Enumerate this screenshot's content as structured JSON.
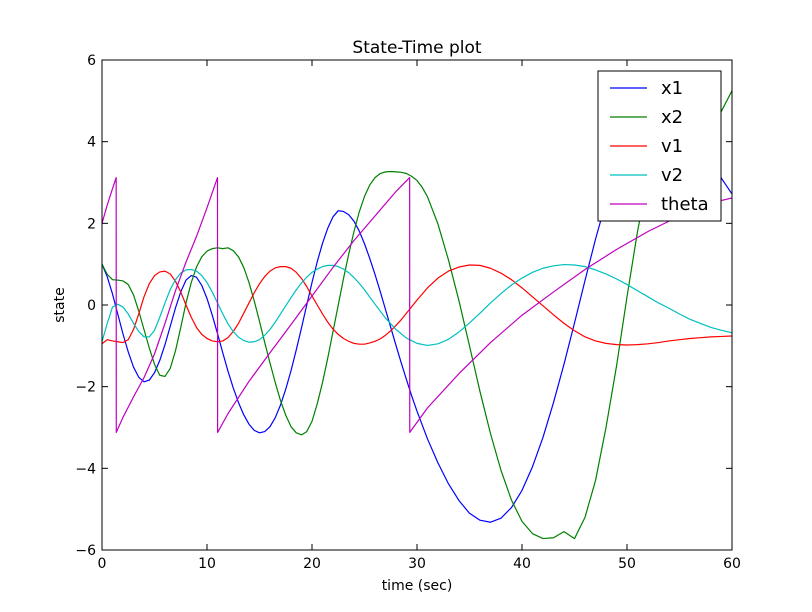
{
  "chart_data": {
    "type": "line",
    "title": "State-Time plot",
    "xlabel": "time (sec)",
    "ylabel": "state",
    "xlim": [
      0,
      60
    ],
    "ylim": [
      -6,
      6
    ],
    "xticks": [
      "0",
      "10",
      "20",
      "30",
      "40",
      "50",
      "60"
    ],
    "yticks": [
      "−6",
      "−4",
      "−2",
      "0",
      "2",
      "4",
      "6"
    ],
    "grid": false,
    "legend": "top-right",
    "series": [
      {
        "name": "x1",
        "color": "#0000ff",
        "x": [
          0,
          0.5,
          1,
          1.5,
          2,
          2.5,
          3,
          3.5,
          4,
          4.5,
          5,
          5.5,
          6,
          6.5,
          7,
          7.5,
          8,
          8.5,
          9,
          9.5,
          10,
          10.5,
          11,
          11.5,
          12,
          12.5,
          13,
          13.5,
          14,
          14.5,
          15,
          15.5,
          16,
          16.5,
          17,
          17.5,
          18,
          18.5,
          19,
          19.5,
          20,
          20.5,
          21,
          21.5,
          22,
          22.5,
          23,
          23.5,
          24,
          24.5,
          25,
          25.5,
          26,
          26.5,
          27,
          27.5,
          28,
          28.5,
          29,
          29.5,
          30,
          31,
          32,
          33,
          34,
          35,
          36,
          37,
          38,
          39,
          40,
          41,
          42,
          43,
          44,
          45,
          46,
          47,
          48,
          49,
          50,
          51,
          52,
          53,
          54,
          55,
          56,
          57,
          58,
          59,
          60
        ],
        "y": [
          1.0,
          0.69,
          0.27,
          -0.22,
          -0.71,
          -1.15,
          -1.52,
          -1.77,
          -1.88,
          -1.84,
          -1.66,
          -1.36,
          -0.97,
          -0.52,
          -0.07,
          0.32,
          0.61,
          0.72,
          0.68,
          0.48,
          0.16,
          -0.25,
          -0.7,
          -1.17,
          -1.62,
          -2.03,
          -2.39,
          -2.69,
          -2.92,
          -3.07,
          -3.13,
          -3.1,
          -2.98,
          -2.76,
          -2.45,
          -2.06,
          -1.61,
          -1.1,
          -0.56,
          0.0,
          0.55,
          1.06,
          1.51,
          1.88,
          2.16,
          2.31,
          2.29,
          2.21,
          2.05,
          1.81,
          1.5,
          1.14,
          0.75,
          0.33,
          -0.11,
          -0.55,
          -0.99,
          -1.42,
          -1.83,
          -2.23,
          -2.6,
          -3.28,
          -3.87,
          -4.38,
          -4.79,
          -5.1,
          -5.27,
          -5.32,
          -5.22,
          -4.96,
          -4.54,
          -3.96,
          -3.24,
          -2.39,
          -1.45,
          -0.44,
          0.6,
          1.61,
          2.53,
          3.32,
          3.93,
          4.36,
          4.62,
          4.73,
          4.72,
          4.58,
          4.34,
          4.0,
          3.58,
          3.1,
          2.72
        ]
      },
      {
        "name": "x2",
        "color": "#008000",
        "x": [
          0,
          0.5,
          1,
          1.5,
          2,
          2.5,
          3,
          3.5,
          4,
          4.5,
          5,
          5.5,
          6,
          6.5,
          7,
          7.5,
          8,
          8.5,
          9,
          9.5,
          10,
          10.5,
          11,
          11.5,
          12,
          12.5,
          13,
          13.5,
          14,
          14.5,
          15,
          15.5,
          16,
          16.5,
          17,
          17.5,
          18,
          18.5,
          19,
          19.5,
          20,
          20.5,
          21,
          21.5,
          22,
          22.5,
          23,
          23.5,
          24,
          24.5,
          25,
          25.5,
          26,
          26.5,
          27,
          27.5,
          28,
          28.5,
          29,
          29.5,
          30,
          30.5,
          31,
          32,
          33,
          34,
          35,
          36,
          37,
          38,
          39,
          40,
          41,
          42,
          43,
          44,
          45,
          46,
          47,
          48,
          49,
          50,
          51,
          52,
          53,
          54,
          55,
          56,
          57,
          58,
          59,
          60
        ],
        "y": [
          1.0,
          0.75,
          0.62,
          0.61,
          0.59,
          0.5,
          0.25,
          -0.15,
          -0.6,
          -1.05,
          -1.45,
          -1.72,
          -1.75,
          -1.55,
          -1.12,
          -0.55,
          0.05,
          0.55,
          0.93,
          1.18,
          1.32,
          1.38,
          1.4,
          1.38,
          1.4,
          1.33,
          1.18,
          0.92,
          0.55,
          0.1,
          -0.4,
          -0.92,
          -1.42,
          -1.9,
          -2.34,
          -2.7,
          -2.98,
          -3.13,
          -3.18,
          -3.1,
          -2.85,
          -2.42,
          -1.9,
          -1.3,
          -0.65,
          0.0,
          0.65,
          1.25,
          1.8,
          2.28,
          2.66,
          2.94,
          3.12,
          3.22,
          3.26,
          3.27,
          3.26,
          3.25,
          3.22,
          3.15,
          3.05,
          2.88,
          2.65,
          1.98,
          1.1,
          0.1,
          -1.0,
          -2.12,
          -3.15,
          -4.05,
          -4.78,
          -5.3,
          -5.6,
          -5.72,
          -5.7,
          -5.55,
          -5.72,
          -5.2,
          -4.3,
          -3.0,
          -1.5,
          0.2,
          1.8,
          3.1,
          3.95,
          4.25,
          3.95,
          3.35,
          3.62,
          4.2,
          4.75,
          5.25
        ]
      },
      {
        "name": "v1",
        "color": "#ff0000",
        "x": [
          0,
          0.5,
          1,
          1.5,
          2,
          2.5,
          3,
          3.5,
          4,
          4.5,
          5,
          5.5,
          6,
          6.5,
          7,
          7.5,
          8,
          8.5,
          9,
          9.5,
          10,
          10.5,
          11,
          11.5,
          12,
          12.5,
          13,
          13.5,
          14,
          14.5,
          15,
          15.5,
          16,
          16.5,
          17,
          17.5,
          18,
          18.5,
          19,
          19.5,
          20,
          20.5,
          21,
          21.5,
          22,
          22.5,
          23,
          23.5,
          24,
          24.5,
          25,
          25.5,
          26,
          26.5,
          27,
          27.5,
          28,
          28.5,
          29,
          29.5,
          30,
          31,
          32,
          33,
          34,
          35,
          36,
          37,
          38,
          39,
          40,
          41,
          42,
          43,
          44,
          45,
          46,
          47,
          48,
          49,
          50,
          51,
          52,
          53,
          54,
          55,
          56,
          57,
          58,
          59,
          60
        ],
        "y": [
          -0.95,
          -0.85,
          -0.88,
          -0.9,
          -0.92,
          -0.85,
          -0.6,
          -0.22,
          0.2,
          0.52,
          0.72,
          0.81,
          0.83,
          0.76,
          0.58,
          0.32,
          0.0,
          -0.3,
          -0.55,
          -0.72,
          -0.82,
          -0.88,
          -0.9,
          -0.88,
          -0.8,
          -0.65,
          -0.45,
          -0.2,
          0.05,
          0.3,
          0.52,
          0.7,
          0.83,
          0.91,
          0.94,
          0.94,
          0.9,
          0.8,
          0.65,
          0.45,
          0.22,
          0.0,
          -0.22,
          -0.42,
          -0.59,
          -0.72,
          -0.82,
          -0.89,
          -0.94,
          -0.96,
          -0.96,
          -0.93,
          -0.89,
          -0.83,
          -0.74,
          -0.63,
          -0.5,
          -0.36,
          -0.2,
          -0.04,
          0.12,
          0.42,
          0.66,
          0.83,
          0.93,
          0.98,
          0.97,
          0.9,
          0.78,
          0.62,
          0.42,
          0.2,
          -0.02,
          -0.24,
          -0.45,
          -0.63,
          -0.78,
          -0.88,
          -0.94,
          -0.97,
          -0.98,
          -0.97,
          -0.95,
          -0.92,
          -0.88,
          -0.85,
          -0.82,
          -0.8,
          -0.78,
          -0.77,
          -0.76
        ]
      },
      {
        "name": "v2",
        "color": "#00bfbf",
        "x": [
          0,
          0.5,
          1,
          1.5,
          2,
          2.5,
          3,
          3.5,
          4,
          4.5,
          5,
          5.5,
          6,
          6.5,
          7,
          7.5,
          8,
          8.5,
          9,
          9.5,
          10,
          10.5,
          11,
          11.5,
          12,
          12.5,
          13,
          13.5,
          14,
          14.5,
          15,
          15.5,
          16,
          16.5,
          17,
          17.5,
          18,
          18.5,
          19,
          19.5,
          20,
          20.5,
          21,
          21.5,
          22,
          22.5,
          23,
          23.5,
          24,
          24.5,
          25,
          26,
          27,
          28,
          29,
          30,
          31,
          32,
          33,
          34,
          35,
          36,
          37,
          38,
          39,
          40,
          41,
          42,
          43,
          44,
          45,
          46,
          47,
          48,
          49,
          50,
          51,
          52,
          53,
          54,
          55,
          56,
          57,
          58,
          59,
          60
        ],
        "y": [
          -0.9,
          -0.45,
          -0.05,
          0.02,
          -0.05,
          -0.22,
          -0.45,
          -0.65,
          -0.78,
          -0.78,
          -0.62,
          -0.3,
          0.05,
          0.38,
          0.62,
          0.78,
          0.86,
          0.87,
          0.83,
          0.72,
          0.55,
          0.32,
          0.05,
          -0.22,
          -0.46,
          -0.65,
          -0.79,
          -0.87,
          -0.91,
          -0.9,
          -0.85,
          -0.74,
          -0.6,
          -0.42,
          -0.22,
          -0.02,
          0.18,
          0.37,
          0.54,
          0.68,
          0.8,
          0.88,
          0.94,
          0.97,
          0.97,
          0.94,
          0.88,
          0.79,
          0.67,
          0.53,
          0.37,
          0.02,
          -0.32,
          -0.6,
          -0.81,
          -0.94,
          -0.99,
          -0.95,
          -0.84,
          -0.66,
          -0.44,
          -0.2,
          0.05,
          0.28,
          0.49,
          0.66,
          0.8,
          0.9,
          0.96,
          0.99,
          0.98,
          0.94,
          0.86,
          0.76,
          0.64,
          0.5,
          0.35,
          0.2,
          0.05,
          -0.08,
          -0.22,
          -0.35,
          -0.45,
          -0.55,
          -0.62,
          -0.68
        ]
      },
      {
        "name": "theta",
        "color": "#bf00bf",
        "x": [
          0,
          0.5,
          1.0,
          1.35,
          1.36,
          2.0,
          3.0,
          4.0,
          5.0,
          6.0,
          7.0,
          8.0,
          9.0,
          10.0,
          11.0,
          11.01,
          12.0,
          14.0,
          16.0,
          18.0,
          20.0,
          22.0,
          24.0,
          26.0,
          28.0,
          29.3,
          29.31,
          31.0,
          34.0,
          37.0,
          40.0,
          43.0,
          46.0,
          49.0,
          52.0,
          55.0,
          58.0,
          60.0
        ],
        "y": [
          2.0,
          2.45,
          2.85,
          3.12,
          -3.12,
          -2.75,
          -2.25,
          -1.78,
          -1.2,
          -0.45,
          0.35,
          1.05,
          1.68,
          2.38,
          3.12,
          -3.12,
          -2.66,
          -1.87,
          -1.17,
          -0.48,
          0.22,
          0.92,
          1.58,
          2.18,
          2.78,
          3.12,
          -3.12,
          -2.52,
          -1.68,
          -0.92,
          -0.25,
          0.32,
          0.87,
          1.36,
          1.8,
          2.18,
          2.5,
          2.62
        ]
      }
    ]
  }
}
